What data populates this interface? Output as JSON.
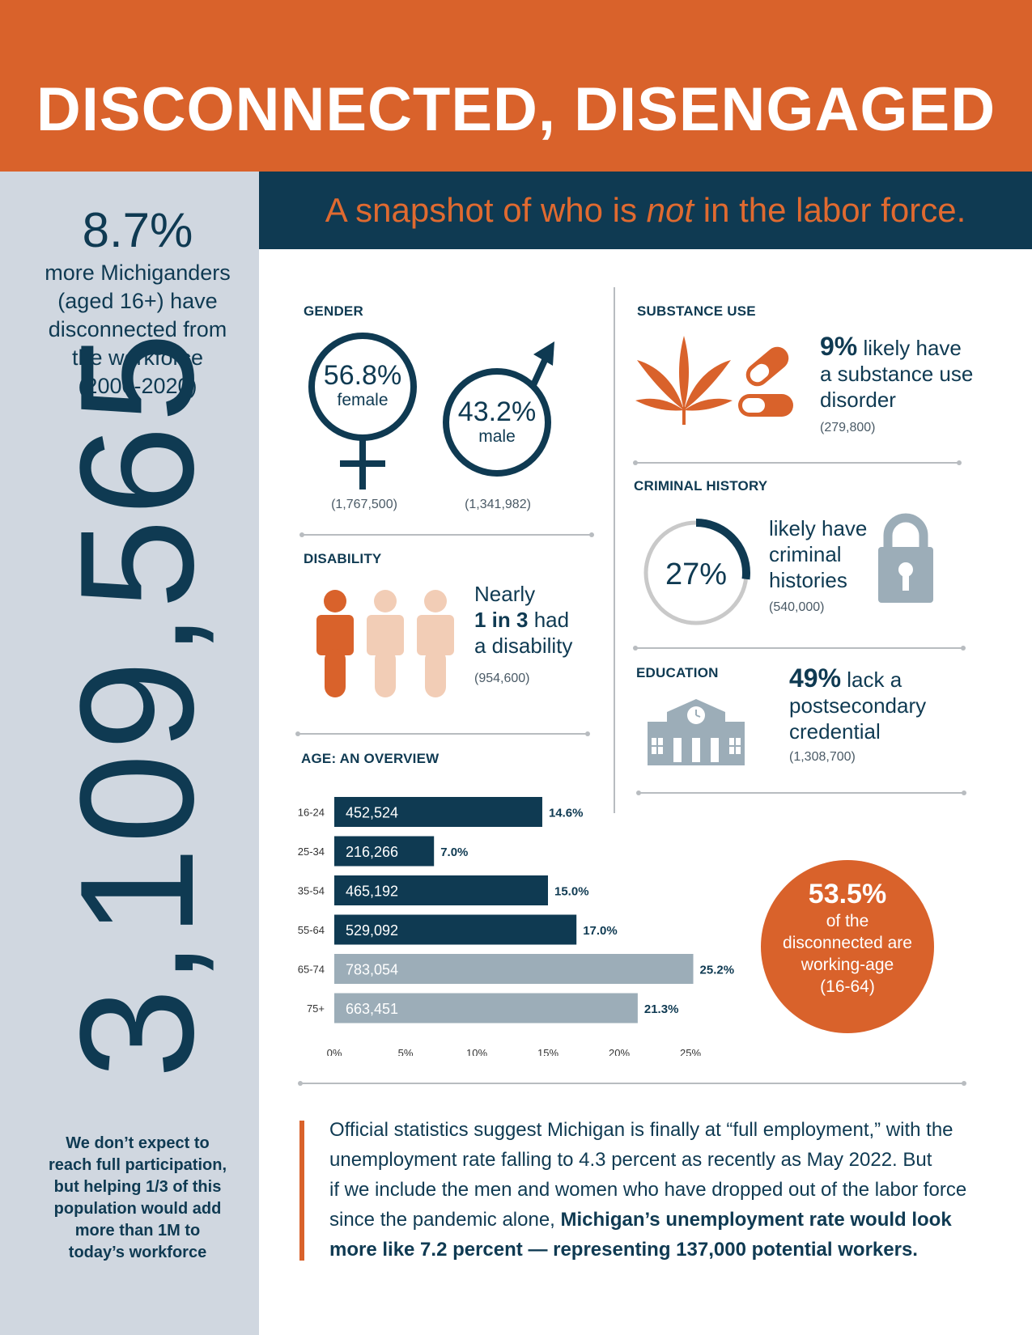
{
  "header": {
    "title": "DISCONNECTED, DISENGAGED",
    "subtitle_pre": "A snapshot of who is ",
    "subtitle_em": "not",
    "subtitle_post": " in the labor force."
  },
  "sidebar": {
    "pct": "8.7%",
    "line1": "more Michiganders",
    "line2": "(aged 16+) have",
    "line3": "disconnected from",
    "line4": "the workforce",
    "line5": "(2000-2020)",
    "big_number": "3,109,565",
    "bottom1": "We don’t expect to",
    "bottom2": "reach full participation,",
    "bottom3": "but helping 1/3 of this",
    "bottom4": "population would add",
    "bottom5": "more than 1M to",
    "bottom6": "today’s workforce"
  },
  "gender": {
    "label": "GENDER",
    "female_pct": "56.8%",
    "female_label": "female",
    "female_count": "(1,767,500)",
    "male_pct": "43.2%",
    "male_label": "male",
    "male_count": "(1,341,982)",
    "colors": {
      "outline": "#0f3a52"
    }
  },
  "disability": {
    "label": "DISABILITY",
    "line1": "Nearly",
    "bold": "1 in 3",
    "had": " had",
    "line3": "a disability",
    "count": "(954,600)",
    "colors": {
      "highlight": "#d9622b",
      "muted": "#f2cdb6"
    }
  },
  "substance": {
    "label": "SUBSTANCE USE",
    "pct": "9%",
    "line1": " likely have",
    "line2": "a substance use",
    "line3": "disorder",
    "count": "(279,800)",
    "icons": [
      "cannabis-leaf-icon",
      "pill-capsule-icon"
    ]
  },
  "criminal": {
    "label": "CRIMINAL HISTORY",
    "pct": "27%",
    "value": 0.27,
    "line1": "likely have",
    "line2": "criminal",
    "line3": "histories",
    "count": "(540,000)",
    "icons": [
      "padlock-icon"
    ]
  },
  "education": {
    "label": "EDUCATION",
    "pct": "49%",
    "line1": " lack a",
    "line2": "postsecondary",
    "line3": "credential",
    "count": "(1,308,700)",
    "icons": [
      "school-building-icon"
    ]
  },
  "age_label": "AGE: AN OVERVIEW",
  "chart_data": {
    "type": "bar",
    "orientation": "horizontal",
    "title": "AGE: AN OVERVIEW",
    "categories": [
      "16-24",
      "25-34",
      "35-54",
      "55-64",
      "65-74",
      "75+"
    ],
    "values": [
      14.6,
      7.0,
      15.0,
      17.0,
      25.2,
      21.3
    ],
    "value_labels": [
      "14.6%",
      "7.0%",
      "15.0%",
      "17.0%",
      "25.2%",
      "21.3%"
    ],
    "counts": [
      "452,524",
      "216,266",
      "465,192",
      "529,092",
      "783,054",
      "663,451"
    ],
    "xlim": [
      0,
      25
    ],
    "xticks": [
      "0%",
      "5%",
      "10%",
      "15%",
      "20%",
      "25%"
    ],
    "grid": false,
    "colors": {
      "working_age": "#0f3a52",
      "older": "#9cadb8"
    },
    "working_age_count": 4
  },
  "callout": {
    "pct": "53.5%",
    "line1": "of the",
    "line2": "disconnected are",
    "line3": "working-age",
    "line4": "(16-64)"
  },
  "quote": {
    "l1": "Official statistics suggest Michigan is finally at “full employment,” with the",
    "l2": "unemployment rate falling to 4.3 percent as recently as May 2022. But",
    "l3": "if we include the men and women who have dropped out of the labor force",
    "l4_plain": "since the pandemic alone, ",
    "l4_bold": "Michigan’s unemployment rate would look",
    "l5_bold": "more like 7.2 percent — representing 137,000 potential workers."
  }
}
